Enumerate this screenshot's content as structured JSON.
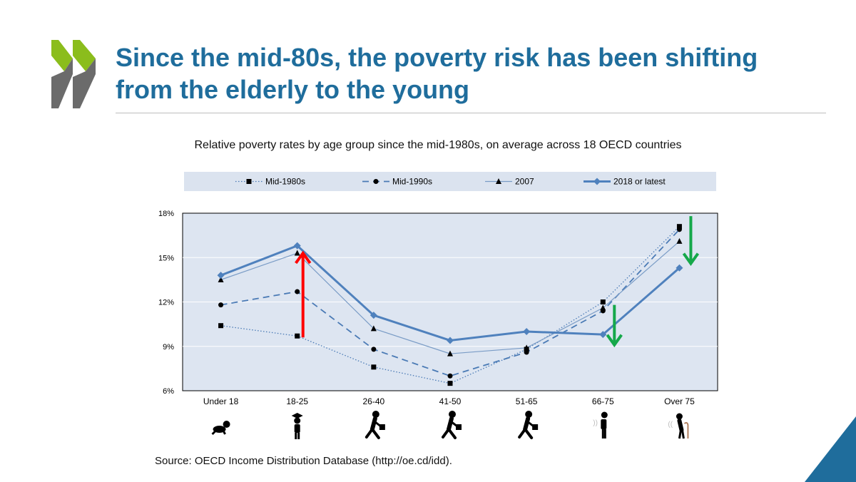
{
  "slide": {
    "title_line1": "Since the mid-80s, the poverty risk has been shifting",
    "title_line2": "from the elderly to the young",
    "source": "Source: OECD Income Distribution Database (http://oe.cd/idd).",
    "colors": {
      "title": "#1f6d9c",
      "logo_green": "#8bbd1c",
      "logo_grey": "#6b6b6b",
      "corner_triangle": "#1f6d9c"
    }
  },
  "chart_data": {
    "type": "line",
    "title": "Relative poverty rates by age group since the mid-1980s, on average across 18 OECD countries",
    "categories": [
      "Under 18",
      "18-25",
      "26-40",
      "41-50",
      "51-65",
      "66-75",
      "Over 75"
    ],
    "yticks": [
      "18%",
      "15%",
      "12%",
      "9%",
      "6%"
    ],
    "ylim": [
      6,
      18
    ],
    "grid": "horizontal",
    "legend_position": "top",
    "series": [
      {
        "name": "Mid-1980s",
        "values": [
          10.4,
          9.7,
          7.6,
          6.5,
          8.8,
          12.0,
          17.1
        ],
        "style": "dotted",
        "marker": "square",
        "color": "#4a7ab5"
      },
      {
        "name": "Mid-1990s",
        "values": [
          11.8,
          12.7,
          8.8,
          7.0,
          8.6,
          11.4,
          16.9
        ],
        "style": "dashed",
        "marker": "circle",
        "color": "#4a7ab5"
      },
      {
        "name": "2007",
        "values": [
          13.5,
          15.3,
          10.2,
          8.5,
          8.9,
          11.6,
          16.1
        ],
        "style": "thin",
        "marker": "triangle",
        "color": "#7a9cc6"
      },
      {
        "name": "2018 or latest",
        "values": [
          13.8,
          15.8,
          11.1,
          9.4,
          10.0,
          9.8,
          14.3
        ],
        "style": "thick",
        "marker": "diamond",
        "color": "#4f81bd"
      }
    ],
    "annotations": [
      {
        "type": "arrow-up",
        "category": "18-25",
        "from": 9.6,
        "to": 15.3,
        "color": "#ff0000"
      },
      {
        "type": "arrow-down",
        "category": "66-75",
        "from": 11.8,
        "to": 9.1,
        "color": "#15a84a"
      },
      {
        "type": "arrow-down",
        "category": "Over 75",
        "from": 17.8,
        "to": 14.6,
        "color": "#15a84a"
      }
    ],
    "icons": [
      "baby-crawling-icon",
      "graduate-icon",
      "worker-walking-icon",
      "worker-walking-icon",
      "worker-walking-icon",
      "elderly-standing-icon",
      "elderly-cane-icon"
    ]
  }
}
